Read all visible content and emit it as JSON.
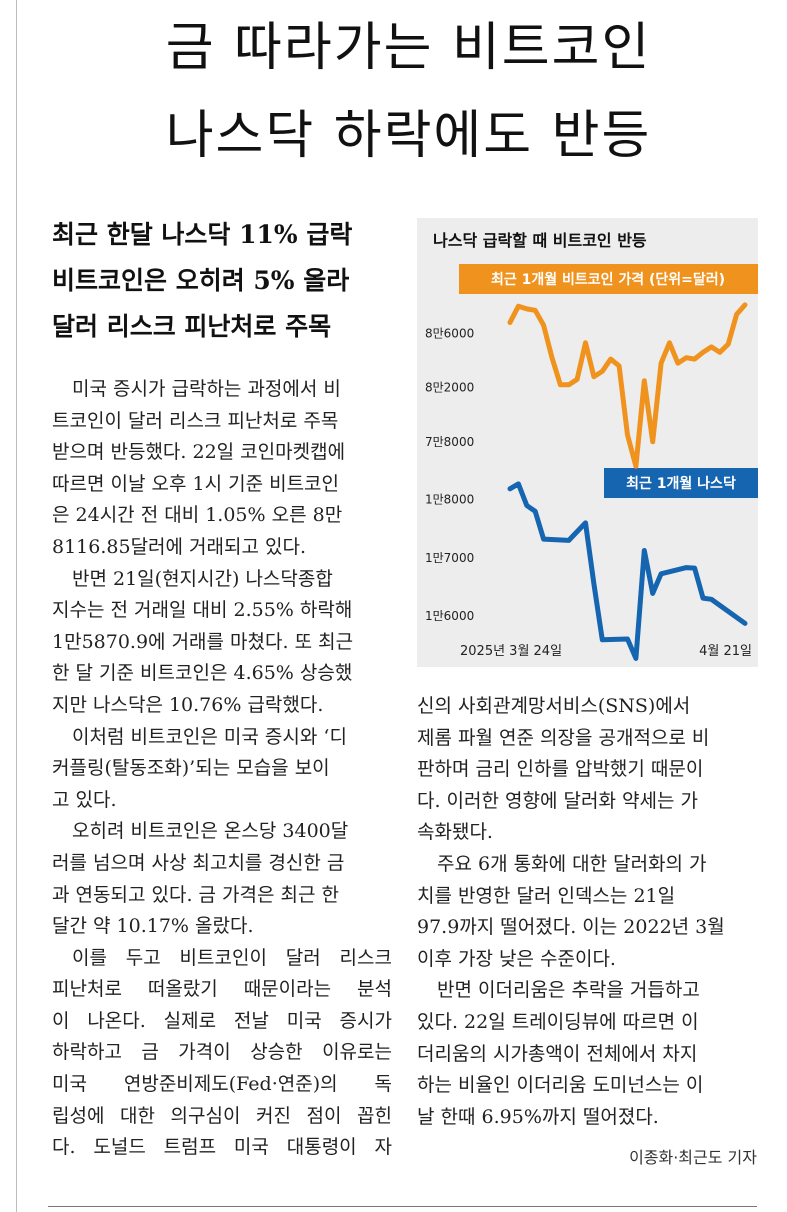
{
  "headline": {
    "line1": "금 따라가는 비트코인",
    "line2": "나스닥 하락에도 반등"
  },
  "subheadline": [
    "최근 한달 나스닥 11% 급락",
    "비트코인은 오히려 5% 올라",
    "달러 리스크 피난처로 주목"
  ],
  "chart": {
    "title": "나스닥 급락할 때 비트코인 반등",
    "btc_label": "최근 1개월 비트코인 가격 (단위=달러)",
    "nasdaq_label": "최근 1개월 나스닥",
    "x_start": "2025년 3월 24일",
    "x_end": "4월 21일",
    "colors": {
      "btc": "#f0921e",
      "nasdaq": "#1565b0",
      "panel": "#ededed"
    }
  },
  "chart_data": [
    {
      "type": "line",
      "title": "최근 1개월 비트코인 가격 (단위=달러)",
      "x": [
        "2025-03-24",
        "2025-03-25",
        "2025-03-26",
        "2025-03-27",
        "2025-03-28",
        "2025-03-29",
        "2025-03-30",
        "2025-03-31",
        "2025-04-01",
        "2025-04-02",
        "2025-04-03",
        "2025-04-04",
        "2025-04-05",
        "2025-04-06",
        "2025-04-07",
        "2025-04-08",
        "2025-04-09",
        "2025-04-10",
        "2025-04-11",
        "2025-04-12",
        "2025-04-13",
        "2025-04-14",
        "2025-04-15",
        "2025-04-16",
        "2025-04-17",
        "2025-04-18",
        "2025-04-19",
        "2025-04-20",
        "2025-04-21"
      ],
      "values": [
        86800,
        88000,
        87800,
        87700,
        86600,
        84200,
        82200,
        82200,
        82600,
        85300,
        82800,
        83200,
        84100,
        83600,
        78500,
        76200,
        82500,
        78000,
        83800,
        85300,
        83800,
        84200,
        84100,
        84600,
        85000,
        84600,
        85200,
        87400,
        88100
      ],
      "ytick_labels": [
        "8만6000",
        "8만2000",
        "7만8000"
      ],
      "ytick_values": [
        86000,
        82000,
        78000
      ],
      "ylim": [
        74000,
        92000
      ],
      "grid": false
    },
    {
      "type": "line",
      "title": "최근 1개월 나스닥",
      "x": [
        "2025-03-24",
        "2025-03-25",
        "2025-03-26",
        "2025-03-27",
        "2025-03-28",
        "2025-03-31",
        "2025-04-01",
        "2025-04-02",
        "2025-04-03",
        "2025-04-04",
        "2025-04-07",
        "2025-04-08",
        "2025-04-09",
        "2025-04-10",
        "2025-04-11",
        "2025-04-14",
        "2025-04-15",
        "2025-04-16",
        "2025-04-17",
        "2025-04-21"
      ],
      "values": [
        18188,
        18272,
        17900,
        17800,
        17322,
        17299,
        17450,
        17601,
        16551,
        15588,
        15603,
        15268,
        17125,
        16387,
        16724,
        16831,
        16823,
        16307,
        16286,
        15871
      ],
      "ytick_labels": [
        "1만8000",
        "1만7000",
        "1만6000"
      ],
      "ytick_values": [
        18000,
        17000,
        16000
      ],
      "ylim": [
        15000,
        18700
      ],
      "grid": false
    }
  ],
  "body": {
    "left": [
      [
        "미국 증시가 급락하는 과정에서 비",
        "트코인이 달러 리스크 피난처로 주목",
        "받으며 반등했다. 22일 코인마켓캡에",
        "따르면 이날 오후 1시 기준 비트코인",
        "은 24시간 전 대비 1.05% 오른 8만",
        "8116.85달러에 거래되고 있다."
      ],
      [
        "반면 21일(현지시간) 나스닥종합",
        "지수는 전 거래일 대비 2.55% 하락해",
        "1만5870.9에 거래를 마쳤다. 또 최근",
        "한 달 기준 비트코인은 4.65% 상승했",
        "지만 나스닥은 10.76% 급락했다."
      ],
      [
        "이처럼 비트코인은 미국 증시와 ‘디",
        "커플링(탈동조화)’되는 모습을 보이",
        "고 있다."
      ],
      [
        "오히려 비트코인은 온스당 3400달",
        "러를 넘으며 사상 최고치를 경신한 금",
        "과 연동되고 있다. 금 가격은 최근 한",
        "달간 약 10.17% 올랐다."
      ],
      [
        "이를 두고 비트코인이 달러 리스크",
        "피난처로 떠올랐기 때문이라는 분석",
        "이 나온다. 실제로 전날 미국 증시가",
        "하락하고 금 가격이 상승한 이유로는",
        "미국 연방준비제도(Fed·연준)의 독",
        "립성에 대한 의구심이 커진 점이 꼽힌",
        "다. 도널드 트럼프 미국 대통령이 자"
      ]
    ],
    "right": [
      [
        "신의 사회관계망서비스(SNS)에서",
        "제롬 파월 연준 의장을 공개적으로 비",
        "판하며 금리 인하를 압박했기 때문이",
        "다. 이러한 영향에 달러화 약세는 가",
        "속화됐다."
      ],
      [
        "주요 6개 통화에 대한 달러화의 가",
        "치를 반영한 달러 인덱스는 21일",
        "97.9까지 떨어졌다. 이는 2022년 3월",
        "이후 가장 낮은 수준이다."
      ],
      [
        "반면 이더리움은 추락을 거듭하고",
        "있다. 22일 트레이딩뷰에 따르면 이",
        "더리움의 시가총액이 전체에서 차지",
        "하는 비율인 이더리움 도미넌스는 이",
        "날 한때 6.95%까지 떨어졌다."
      ]
    ]
  },
  "byline": "이종화·최근도 기자"
}
